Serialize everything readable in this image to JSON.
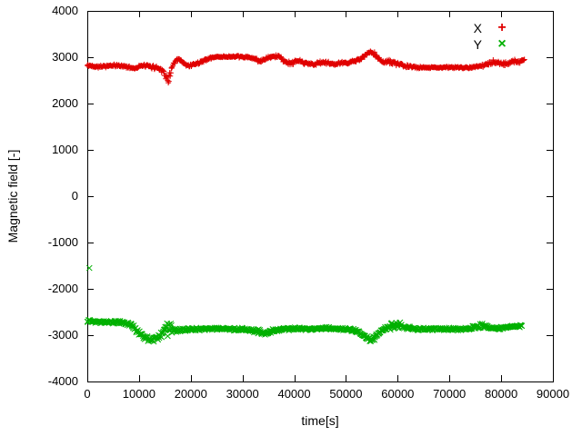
{
  "figure": {
    "background": "#ffffff",
    "axis_color": "#000000"
  },
  "chart_data": {
    "type": "scatter",
    "title": "",
    "xlabel": "time[s]",
    "ylabel": "Magnetic field [-]",
    "xlim": [
      0,
      90000
    ],
    "ylim": [
      -4000,
      4000
    ],
    "xticks": [
      0,
      10000,
      20000,
      30000,
      40000,
      50000,
      60000,
      70000,
      80000,
      90000
    ],
    "yticks": [
      -4000,
      -3000,
      -2000,
      -1000,
      0,
      1000,
      2000,
      3000,
      4000
    ],
    "grid": false,
    "legend": {
      "position": "top-right",
      "entries": [
        {
          "label": "X",
          "marker": "plus",
          "marker_glyph": "+",
          "color": "#e00000"
        },
        {
          "label": "Y",
          "marker": "cross",
          "marker_glyph": "×",
          "color": "#00b000"
        }
      ]
    },
    "series": [
      {
        "name": "X",
        "color": "#e00000",
        "marker": "plus",
        "points": [
          [
            0,
            2820
          ],
          [
            2000,
            2800
          ],
          [
            4000,
            2810
          ],
          [
            6000,
            2820
          ],
          [
            8000,
            2790
          ],
          [
            9000,
            2760
          ],
          [
            10000,
            2800
          ],
          [
            11000,
            2820
          ],
          [
            12000,
            2800
          ],
          [
            13000,
            2780,
            50
          ],
          [
            14000,
            2760,
            60
          ],
          [
            14800,
            2700,
            80
          ],
          [
            15300,
            2520,
            120
          ],
          [
            15800,
            2560,
            120
          ],
          [
            16300,
            2750,
            80
          ],
          [
            17000,
            2900,
            60
          ],
          [
            17800,
            2950,
            50
          ],
          [
            18500,
            2880
          ],
          [
            19200,
            2820
          ],
          [
            20000,
            2830
          ],
          [
            21000,
            2860
          ],
          [
            22000,
            2900
          ],
          [
            23000,
            2950
          ],
          [
            24000,
            2990
          ],
          [
            25000,
            3010,
            25
          ],
          [
            27000,
            3010,
            25
          ],
          [
            29000,
            3010,
            25
          ],
          [
            31000,
            3000,
            30
          ],
          [
            32500,
            2960,
            40
          ],
          [
            33500,
            2920,
            50
          ],
          [
            34500,
            2960,
            40
          ],
          [
            35500,
            3000,
            40
          ],
          [
            36500,
            3020,
            50
          ],
          [
            37500,
            2990,
            60
          ],
          [
            38500,
            2900,
            70
          ],
          [
            39200,
            2850,
            60
          ],
          [
            40000,
            2900,
            50
          ],
          [
            41000,
            2920,
            40
          ],
          [
            42000,
            2880,
            40
          ],
          [
            43000,
            2860,
            40
          ],
          [
            44000,
            2850,
            40
          ],
          [
            45000,
            2880,
            40
          ],
          [
            46000,
            2890,
            40
          ],
          [
            47000,
            2860,
            40
          ],
          [
            48000,
            2850,
            40
          ],
          [
            49000,
            2870,
            40
          ],
          [
            50000,
            2880,
            40
          ],
          [
            51000,
            2900,
            40
          ],
          [
            52000,
            2920,
            40
          ],
          [
            53000,
            2980,
            40
          ],
          [
            54000,
            3060,
            40
          ],
          [
            54800,
            3110,
            40
          ],
          [
            55600,
            3060,
            50
          ],
          [
            56400,
            2960,
            50
          ],
          [
            57200,
            2890,
            50
          ],
          [
            58000,
            2920,
            50
          ],
          [
            59000,
            2880,
            50
          ],
          [
            60000,
            2850,
            50
          ],
          [
            61000,
            2820,
            40
          ],
          [
            62000,
            2800,
            35
          ],
          [
            63000,
            2790,
            30
          ],
          [
            64000,
            2780,
            25
          ],
          [
            66000,
            2780,
            25
          ],
          [
            68000,
            2780,
            25
          ],
          [
            70000,
            2780,
            25
          ],
          [
            72000,
            2780,
            25
          ],
          [
            74000,
            2780,
            25
          ],
          [
            75500,
            2800,
            30
          ],
          [
            76500,
            2820,
            40
          ],
          [
            77500,
            2850,
            45
          ],
          [
            78500,
            2900,
            45
          ],
          [
            79500,
            2880,
            45
          ],
          [
            80500,
            2850,
            45
          ],
          [
            81500,
            2880,
            50
          ],
          [
            82500,
            2920,
            50
          ],
          [
            83500,
            2900,
            50
          ],
          [
            84500,
            2950,
            40
          ]
        ],
        "outliers": []
      },
      {
        "name": "Y",
        "color": "#00b000",
        "marker": "cross",
        "points": [
          [
            0,
            -2700
          ],
          [
            2000,
            -2710
          ],
          [
            4000,
            -2720
          ],
          [
            6000,
            -2720
          ],
          [
            7500,
            -2740
          ],
          [
            8500,
            -2780,
            50
          ],
          [
            9500,
            -2900,
            60
          ],
          [
            10500,
            -3000,
            60
          ],
          [
            11500,
            -3060,
            60
          ],
          [
            12500,
            -3100,
            70
          ],
          [
            13300,
            -3060,
            80
          ],
          [
            14000,
            -3020,
            90
          ],
          [
            14700,
            -2950,
            150
          ],
          [
            15300,
            -2850,
            200
          ],
          [
            15900,
            -2800,
            200
          ],
          [
            16500,
            -2880,
            100
          ],
          [
            17200,
            -2900,
            60
          ],
          [
            18000,
            -2890,
            40
          ],
          [
            19000,
            -2880,
            40
          ],
          [
            20000,
            -2870,
            35
          ],
          [
            22000,
            -2870,
            35
          ],
          [
            24000,
            -2860,
            35
          ],
          [
            26000,
            -2860,
            35
          ],
          [
            28000,
            -2870,
            35
          ],
          [
            30000,
            -2870,
            35
          ],
          [
            31500,
            -2890,
            40
          ],
          [
            33000,
            -2920,
            50
          ],
          [
            34000,
            -2950,
            60
          ],
          [
            35000,
            -2930,
            50
          ],
          [
            36000,
            -2900,
            40
          ],
          [
            37000,
            -2880,
            40
          ],
          [
            38000,
            -2870,
            40
          ],
          [
            39000,
            -2860,
            40
          ],
          [
            40000,
            -2850,
            40
          ],
          [
            41500,
            -2860,
            35
          ],
          [
            43000,
            -2870,
            35
          ],
          [
            44500,
            -2860,
            35
          ],
          [
            46000,
            -2850,
            35
          ],
          [
            47500,
            -2860,
            35
          ],
          [
            49000,
            -2870,
            35
          ],
          [
            50500,
            -2880,
            35
          ],
          [
            52000,
            -2900,
            40
          ],
          [
            53000,
            -2980,
            45
          ],
          [
            54000,
            -3060,
            50
          ],
          [
            54800,
            -3100,
            50
          ],
          [
            55600,
            -3050,
            50
          ],
          [
            56400,
            -2950,
            50
          ],
          [
            57200,
            -2880,
            50
          ],
          [
            58000,
            -2840,
            60
          ],
          [
            59000,
            -2800,
            80
          ],
          [
            60000,
            -2780,
            90
          ],
          [
            61000,
            -2820,
            70
          ],
          [
            62000,
            -2850,
            50
          ],
          [
            63000,
            -2860,
            40
          ],
          [
            64500,
            -2870,
            35
          ],
          [
            66000,
            -2870,
            35
          ],
          [
            68000,
            -2870,
            35
          ],
          [
            70000,
            -2870,
            35
          ],
          [
            72000,
            -2870,
            35
          ],
          [
            74000,
            -2860,
            40
          ],
          [
            75200,
            -2810,
            70
          ],
          [
            76000,
            -2780,
            80
          ],
          [
            76800,
            -2820,
            60
          ],
          [
            78000,
            -2850,
            40
          ],
          [
            79500,
            -2850,
            35
          ],
          [
            81000,
            -2830,
            35
          ],
          [
            82500,
            -2810,
            35
          ],
          [
            84000,
            -2800,
            35
          ]
        ],
        "outliers": [
          [
            400,
            -1550
          ]
        ]
      }
    ]
  }
}
